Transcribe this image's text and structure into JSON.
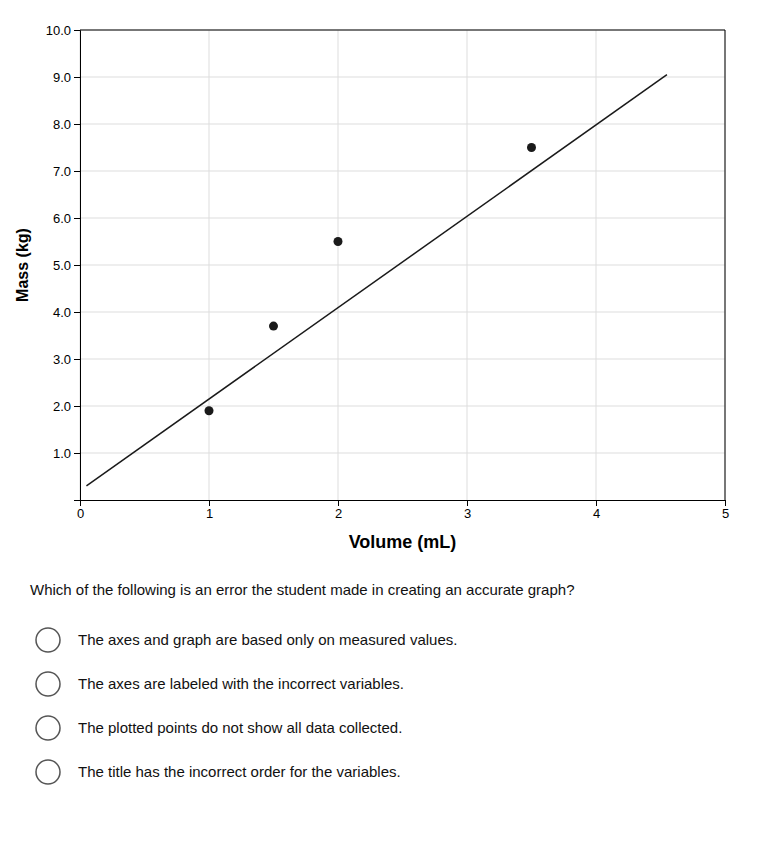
{
  "chart_data": {
    "type": "scatter",
    "xlabel": "Volume (mL)",
    "ylabel": "Mass (kg)",
    "xlim": [
      0,
      5
    ],
    "ylim": [
      0,
      10.0
    ],
    "xticks": [
      0,
      1,
      2,
      3,
      4,
      5
    ],
    "yticks": [
      {
        "value": 1.0,
        "label": "1.0"
      },
      {
        "value": 2.0,
        "label": "2.0"
      },
      {
        "value": 3.0,
        "label": "3.0"
      },
      {
        "value": 4.0,
        "label": "4.0"
      },
      {
        "value": 5.0,
        "label": "5.0"
      },
      {
        "value": 6.0,
        "label": "6.0"
      },
      {
        "value": 7.0,
        "label": "7.0"
      },
      {
        "value": 8.0,
        "label": "8.0"
      },
      {
        "value": 9.0,
        "label": "9.0"
      },
      {
        "value": 10.0,
        "label": "10.0"
      }
    ],
    "grid": true,
    "series": [
      {
        "type": "line",
        "color": "#1a1a1a",
        "x": [
          0.05,
          4.55
        ],
        "values": [
          0.3,
          9.05
        ]
      },
      {
        "type": "scatter",
        "color": "#1a1a1a",
        "x": [
          1.0,
          1.5,
          2.0,
          3.5
        ],
        "values": [
          1.9,
          3.7,
          5.5,
          7.5
        ]
      }
    ],
    "question": "Which of the following is an error the student made in creating an accurate graph?",
    "options": [
      "The axes and graph are based only on measured values.",
      "The axes are labeled with the incorrect variables.",
      "The plotted points do not show all data collected.",
      "The title has the incorrect order for the variables."
    ]
  }
}
